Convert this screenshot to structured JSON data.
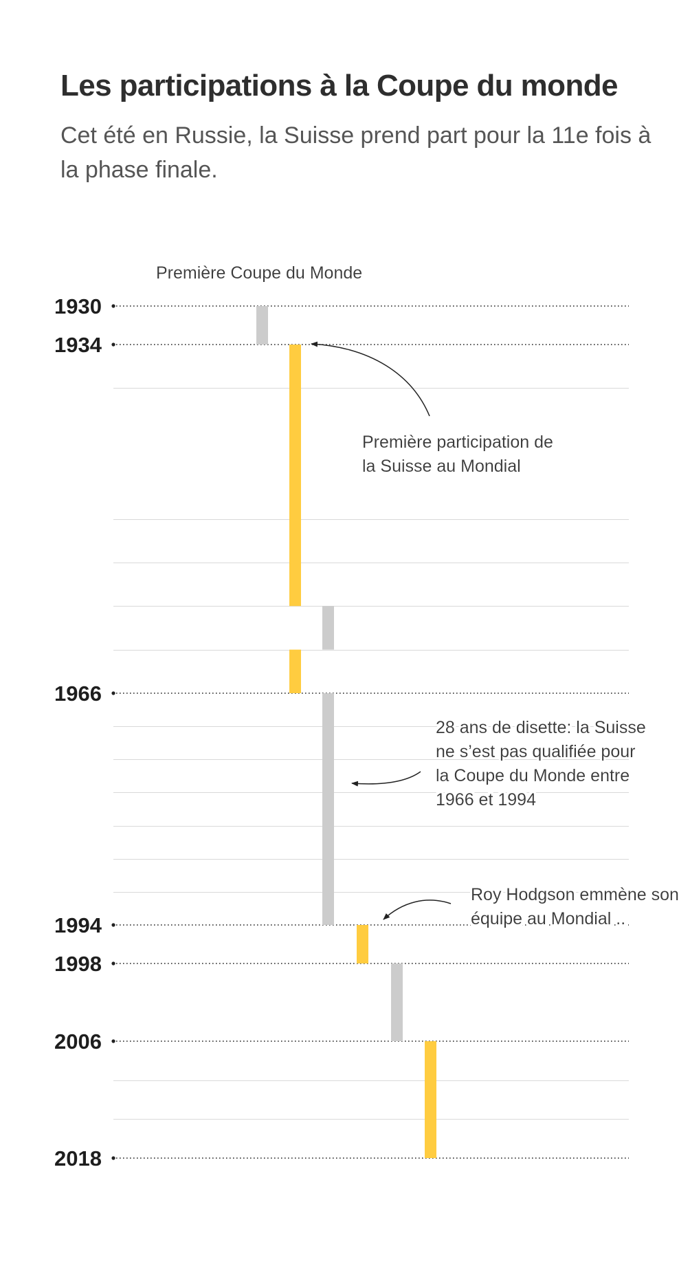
{
  "header": {
    "title": "Les participations à la Coupe du monde",
    "subtitle": "Cet été en Russie, la Suisse prend part pour la 11e fois à la phase finale."
  },
  "colors": {
    "participation": "#ffcc40",
    "absence": "#cccccc",
    "gridline": "#d9d9d9",
    "dotted_line": "#222222"
  },
  "chart_data": {
    "type": "bar",
    "orientation": "vertical-timeline",
    "x_axis": {
      "min": 1930,
      "max": 2018,
      "direction": "top-to-bottom"
    },
    "tick_labels": [
      "1930",
      "1934",
      "1966",
      "1994",
      "1998",
      "2006",
      "2018"
    ],
    "gridlines": [
      1938,
      1950,
      1954,
      1958,
      1962,
      1970,
      1974,
      1978,
      1982,
      1986,
      1990,
      2010,
      2014
    ],
    "segments": [
      {
        "status": "absence",
        "start": 1930,
        "end": 1934
      },
      {
        "status": "participation",
        "start": 1934,
        "end": 1958
      },
      {
        "status": "absence",
        "start": 1958,
        "end": 1962
      },
      {
        "status": "participation",
        "start": 1962,
        "end": 1966
      },
      {
        "status": "absence",
        "start": 1966,
        "end": 1994
      },
      {
        "status": "participation",
        "start": 1994,
        "end": 1998
      },
      {
        "status": "absence",
        "start": 1998,
        "end": 2006
      },
      {
        "status": "participation",
        "start": 2006,
        "end": 2018
      }
    ],
    "annotations": [
      {
        "lines": [
          "Première Coupe du Monde"
        ]
      },
      {
        "lines": [
          "Première participation de",
          "la Suisse au Mondial"
        ]
      },
      {
        "lines": [
          "28 ans de disette: la Suisse",
          "ne s’est pas qualifiée pour",
          "la Coupe du Monde entre",
          "1966 et 1994"
        ]
      },
      {
        "lines": [
          "Roy Hodgson emmène son",
          "équipe au Mondial .."
        ]
      }
    ]
  }
}
